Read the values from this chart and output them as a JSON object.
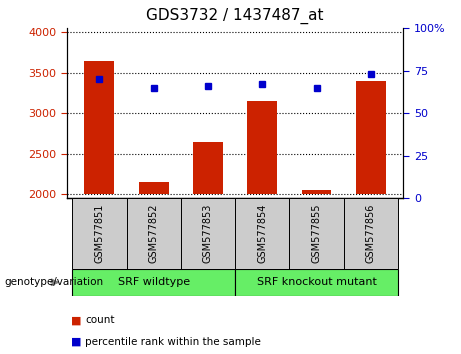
{
  "title": "GDS3732 / 1437487_at",
  "categories": [
    "GSM577851",
    "GSM577852",
    "GSM577853",
    "GSM577854",
    "GSM577855",
    "GSM577856"
  ],
  "counts": [
    3650,
    2150,
    2650,
    3150,
    2050,
    3400
  ],
  "percentiles": [
    70,
    65,
    66,
    67,
    65,
    73
  ],
  "ylim_left": [
    1950,
    4050
  ],
  "ylim_right": [
    0,
    100
  ],
  "yticks_left": [
    2000,
    2500,
    3000,
    3500,
    4000
  ],
  "yticks_right": [
    0,
    25,
    50,
    75,
    100
  ],
  "bar_color": "#cc2200",
  "dot_color": "#0000cc",
  "title_fontsize": 11,
  "tick_label_color_left": "#cc2200",
  "tick_label_color_right": "#0000cc",
  "group1_label": "SRF wildtype",
  "group2_label": "SRF knockout mutant",
  "group1_indices": [
    0,
    1,
    2
  ],
  "group2_indices": [
    3,
    4,
    5
  ],
  "group_bg_color": "#66ee66",
  "legend_count_label": "count",
  "legend_pct_label": "percentile rank within the sample",
  "genotype_label": "genotype/variation",
  "x_tick_bg_color": "#cccccc",
  "bar_bottom": 2000
}
